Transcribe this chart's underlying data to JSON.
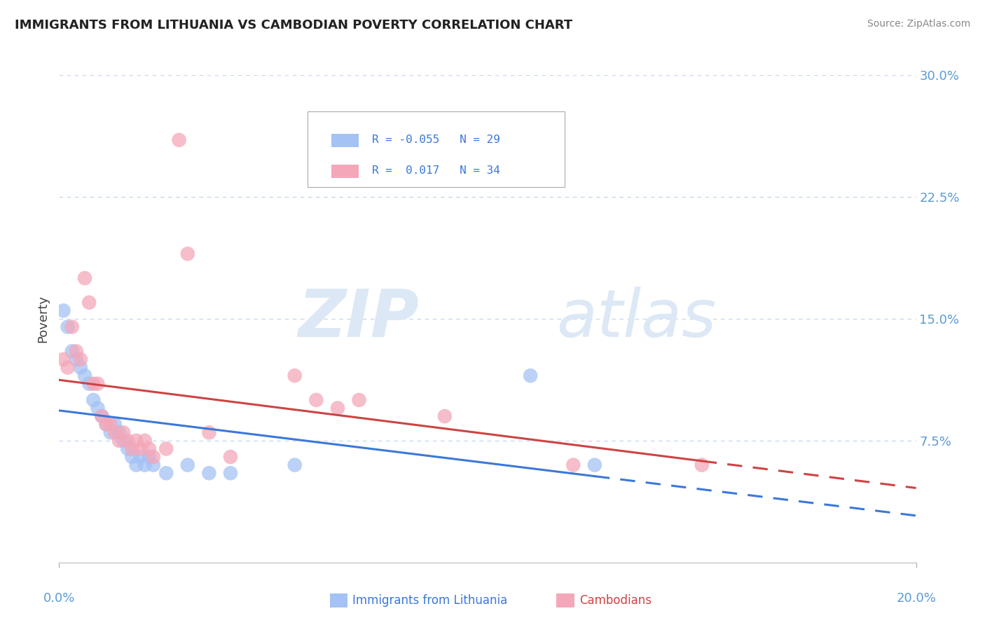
{
  "title": "IMMIGRANTS FROM LITHUANIA VS CAMBODIAN POVERTY CORRELATION CHART",
  "source": "Source: ZipAtlas.com",
  "ylabel": "Poverty",
  "xlim": [
    0.0,
    0.2
  ],
  "ylim": [
    0.0,
    0.3
  ],
  "yticks": [
    0.075,
    0.15,
    0.225,
    0.3
  ],
  "ytick_labels": [
    "7.5%",
    "15.0%",
    "22.5%",
    "30.0%"
  ],
  "blue_color": "#a4c2f4",
  "pink_color": "#f4a7b9",
  "blue_line_color": "#3c78d8",
  "pink_line_color": "#cc4444",
  "blue_scatter": [
    [
      0.001,
      0.155
    ],
    [
      0.002,
      0.145
    ],
    [
      0.003,
      0.13
    ],
    [
      0.004,
      0.125
    ],
    [
      0.005,
      0.12
    ],
    [
      0.006,
      0.115
    ],
    [
      0.007,
      0.11
    ],
    [
      0.008,
      0.1
    ],
    [
      0.009,
      0.095
    ],
    [
      0.01,
      0.09
    ],
    [
      0.011,
      0.085
    ],
    [
      0.012,
      0.08
    ],
    [
      0.013,
      0.085
    ],
    [
      0.014,
      0.08
    ],
    [
      0.015,
      0.075
    ],
    [
      0.016,
      0.07
    ],
    [
      0.017,
      0.065
    ],
    [
      0.018,
      0.06
    ],
    [
      0.019,
      0.065
    ],
    [
      0.02,
      0.06
    ],
    [
      0.021,
      0.065
    ],
    [
      0.022,
      0.06
    ],
    [
      0.025,
      0.055
    ],
    [
      0.03,
      0.06
    ],
    [
      0.035,
      0.055
    ],
    [
      0.04,
      0.055
    ],
    [
      0.055,
      0.06
    ],
    [
      0.11,
      0.115
    ],
    [
      0.125,
      0.06
    ]
  ],
  "pink_scatter": [
    [
      0.001,
      0.125
    ],
    [
      0.002,
      0.12
    ],
    [
      0.003,
      0.145
    ],
    [
      0.004,
      0.13
    ],
    [
      0.005,
      0.125
    ],
    [
      0.006,
      0.175
    ],
    [
      0.007,
      0.16
    ],
    [
      0.008,
      0.11
    ],
    [
      0.009,
      0.11
    ],
    [
      0.01,
      0.09
    ],
    [
      0.011,
      0.085
    ],
    [
      0.012,
      0.085
    ],
    [
      0.013,
      0.08
    ],
    [
      0.014,
      0.075
    ],
    [
      0.015,
      0.08
    ],
    [
      0.016,
      0.075
    ],
    [
      0.017,
      0.07
    ],
    [
      0.018,
      0.075
    ],
    [
      0.019,
      0.07
    ],
    [
      0.02,
      0.075
    ],
    [
      0.021,
      0.07
    ],
    [
      0.022,
      0.065
    ],
    [
      0.025,
      0.07
    ],
    [
      0.028,
      0.26
    ],
    [
      0.03,
      0.19
    ],
    [
      0.035,
      0.08
    ],
    [
      0.04,
      0.065
    ],
    [
      0.055,
      0.115
    ],
    [
      0.06,
      0.1
    ],
    [
      0.065,
      0.095
    ],
    [
      0.07,
      0.1
    ],
    [
      0.09,
      0.09
    ],
    [
      0.12,
      0.06
    ],
    [
      0.15,
      0.06
    ]
  ],
  "title_color": "#222222",
  "source_color": "#888888",
  "axis_label_color": "#444444",
  "tick_color": "#5b9bd5",
  "grid_color": "#c9d9ee",
  "background_color": "#ffffff",
  "watermark_zip": "ZIP",
  "watermark_atlas": "atlas",
  "watermark_color": "#dce8f5"
}
